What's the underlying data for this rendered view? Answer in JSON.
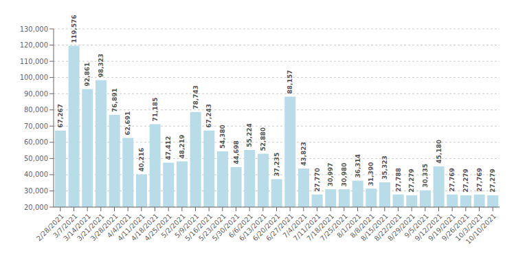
{
  "chart_data": {
    "type": "bar",
    "categories": [
      "2/28/2021",
      "3/7/2021",
      "3/14/2021",
      "3/21/2021",
      "3/28/2021",
      "4/4/2021",
      "4/11/2021",
      "4/18/2021",
      "4/25/2021",
      "5/2/2021",
      "5/9/2021",
      "5/16/2021",
      "5/23/2021",
      "5/30/2021",
      "6/6/2021",
      "6/13/2021",
      "6/20/2021",
      "6/27/2021",
      "7/4/2021",
      "7/11/2021",
      "7/18/2021",
      "7/25/2021",
      "8/1/2021",
      "8/8/2021",
      "8/15/2021",
      "8/22/2021",
      "8/29/2021",
      "9/5/2021",
      "9/12/2021",
      "9/19/2021",
      "9/26/2021",
      "10/3/2021",
      "10/10/2021"
    ],
    "values": [
      67267,
      119576,
      92861,
      98323,
      76891,
      62691,
      40216,
      71185,
      47412,
      48219,
      78743,
      67243,
      54380,
      44698,
      55224,
      52880,
      37235,
      88157,
      43823,
      27770,
      30997,
      30980,
      36314,
      31390,
      35323,
      27788,
      27279,
      30335,
      45180,
      27769,
      27279,
      27769,
      27279
    ],
    "value_labels": [
      "67,267",
      "119,576",
      "92,861",
      "98,323",
      "76,891",
      "62,691",
      "40,216",
      "71,185",
      "47,412",
      "48,219",
      "78,743",
      "67,243",
      "54,380",
      "44,698",
      "55,224",
      "52,880",
      "37,235",
      "88,157",
      "43,823",
      "27,770",
      "30,997",
      "30,980",
      "36,314",
      "31,390",
      "35,323",
      "27,788",
      "27,279",
      "30,335",
      "45,180",
      "27,769",
      "27,279",
      "27,769",
      "27,279"
    ],
    "color": "#b8dce8",
    "ylim": [
      20000,
      130000
    ],
    "yticks": [
      {
        "value": 20000,
        "label": "20,000"
      },
      {
        "value": 30000,
        "label": "30,000"
      },
      {
        "value": 40000,
        "label": "40,000"
      },
      {
        "value": 50000,
        "label": "50,000"
      },
      {
        "value": 60000,
        "label": "60,000"
      },
      {
        "value": 70000,
        "label": "70,000"
      },
      {
        "value": 80000,
        "label": "80,000"
      },
      {
        "value": 90000,
        "label": "90,000"
      },
      {
        "value": 100000,
        "label": "100,000"
      },
      {
        "value": 110000,
        "label": "110,000"
      },
      {
        "value": 120000,
        "label": "120,000"
      },
      {
        "value": 130000,
        "label": "130,000"
      }
    ],
    "grid": true,
    "data_labels": true
  }
}
